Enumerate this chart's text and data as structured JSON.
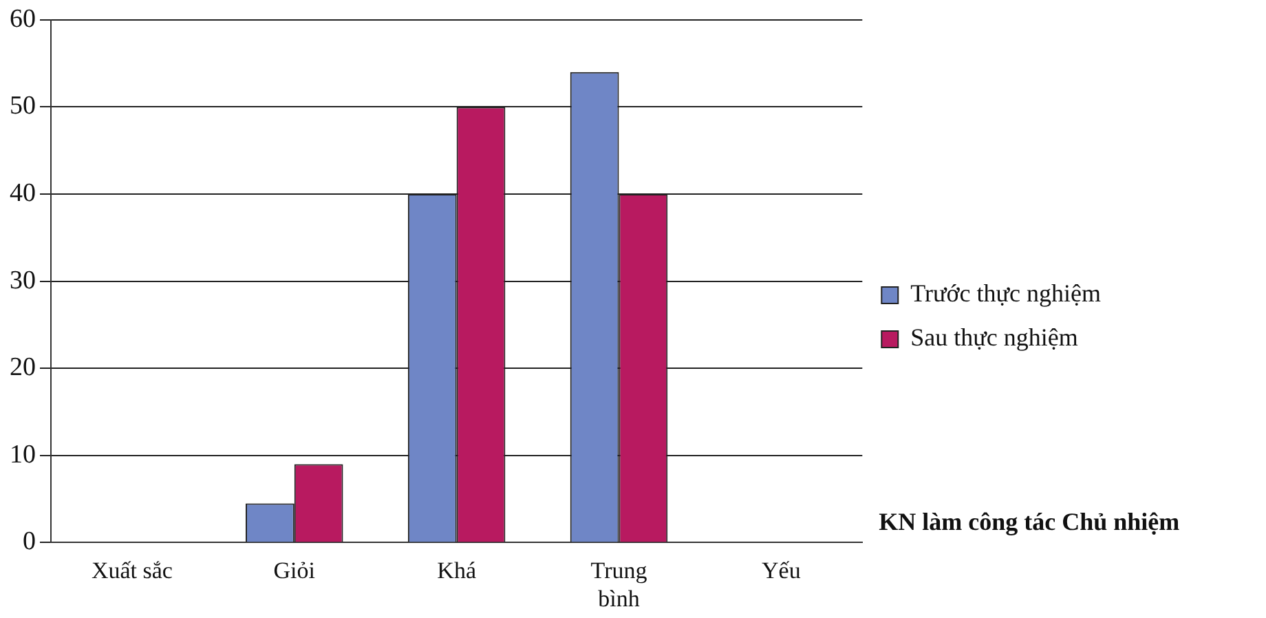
{
  "chart_data": {
    "type": "bar",
    "xlabel": "KN làm công tác Chủ nhiệm",
    "categories": [
      "Xuất sắc",
      "Giỏi",
      "Khá",
      "Trung bình",
      "Yếu"
    ],
    "series": [
      {
        "name": "Trước thực nghiệm",
        "color": "#6f86c6",
        "values": [
          0,
          4.5,
          40,
          54,
          0
        ]
      },
      {
        "name": "Sau thực nghiệm",
        "color": "#b81a60",
        "values": [
          0,
          9,
          50,
          40,
          0
        ]
      }
    ],
    "ylim": [
      0,
      60
    ],
    "yticks": [
      0,
      10,
      20,
      30,
      40,
      50,
      60
    ],
    "grid": "y",
    "legend": "right"
  }
}
